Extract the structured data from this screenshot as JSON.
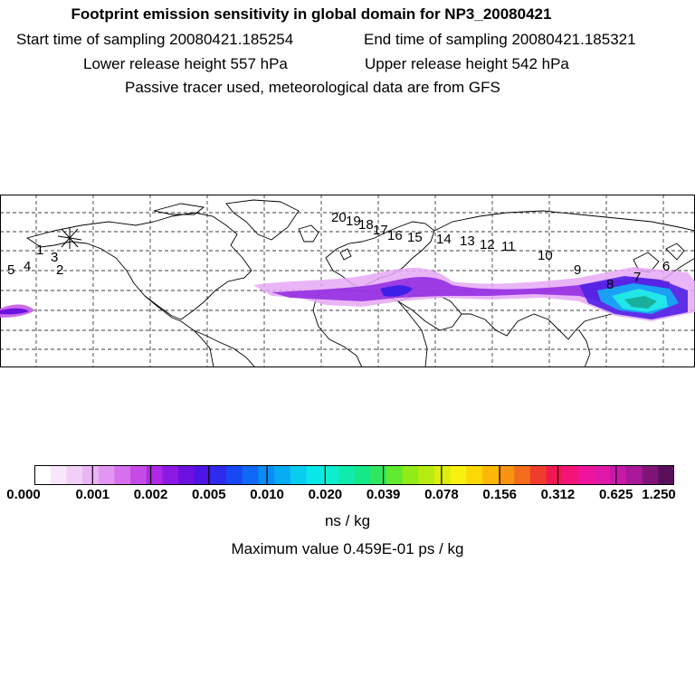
{
  "header": {
    "title": "Footprint emission sensitivity in global domain for NP3_20080421",
    "start": "Start time of sampling 20080421.185254",
    "end": "End time of sampling 20080421.185321",
    "lower": "Lower release height  557 hPa",
    "upper": "Upper release height  542 hPa",
    "note": "Passive tracer used, meteorological data are from GFS"
  },
  "map": {
    "colors": {
      "land": "#000000",
      "grid": "#000000",
      "low": "#e4a8f5",
      "mid": "#7a22d6",
      "high": "#22e2e8",
      "peak": "#18b0a0"
    },
    "trajectory_labels": [
      "5",
      "4",
      "1",
      "3",
      "2",
      "20",
      "19",
      "18",
      "17",
      "16",
      "15",
      "14",
      "13",
      "12",
      "11",
      "10",
      "9",
      "8",
      "7",
      "6"
    ]
  },
  "colorbar": {
    "colors": [
      "#ffffff",
      "#f8e6fb",
      "#f2cff7",
      "#eab5f4",
      "#e296f2",
      "#d670ee",
      "#c64ae8",
      "#b127e6",
      "#8e18e4",
      "#6c10e0",
      "#4d14e6",
      "#2f2aee",
      "#1848f4",
      "#1068f6",
      "#0a8cf6",
      "#08acf4",
      "#08ccf0",
      "#08e8ea",
      "#10ecd0",
      "#10eaac",
      "#14e888",
      "#30e860",
      "#60ea30",
      "#90ec18",
      "#b8ec10",
      "#dcee10",
      "#f8f010",
      "#fcd808",
      "#fcb808",
      "#f89410",
      "#f46c1c",
      "#f03c2c",
      "#f01850",
      "#f41478",
      "#f0149c",
      "#e018a8",
      "#c818a8",
      "#a81898",
      "#801478",
      "#58105a"
    ],
    "ticks": [
      "0.000",
      "0.001",
      "0.002",
      "0.005",
      "0.010",
      "0.020",
      "0.039",
      "0.078",
      "0.156",
      "0.312",
      "0.625",
      "1.250"
    ],
    "units": "ns / kg",
    "maximum": "Maximum value  0.459E-01 ps / kg"
  }
}
